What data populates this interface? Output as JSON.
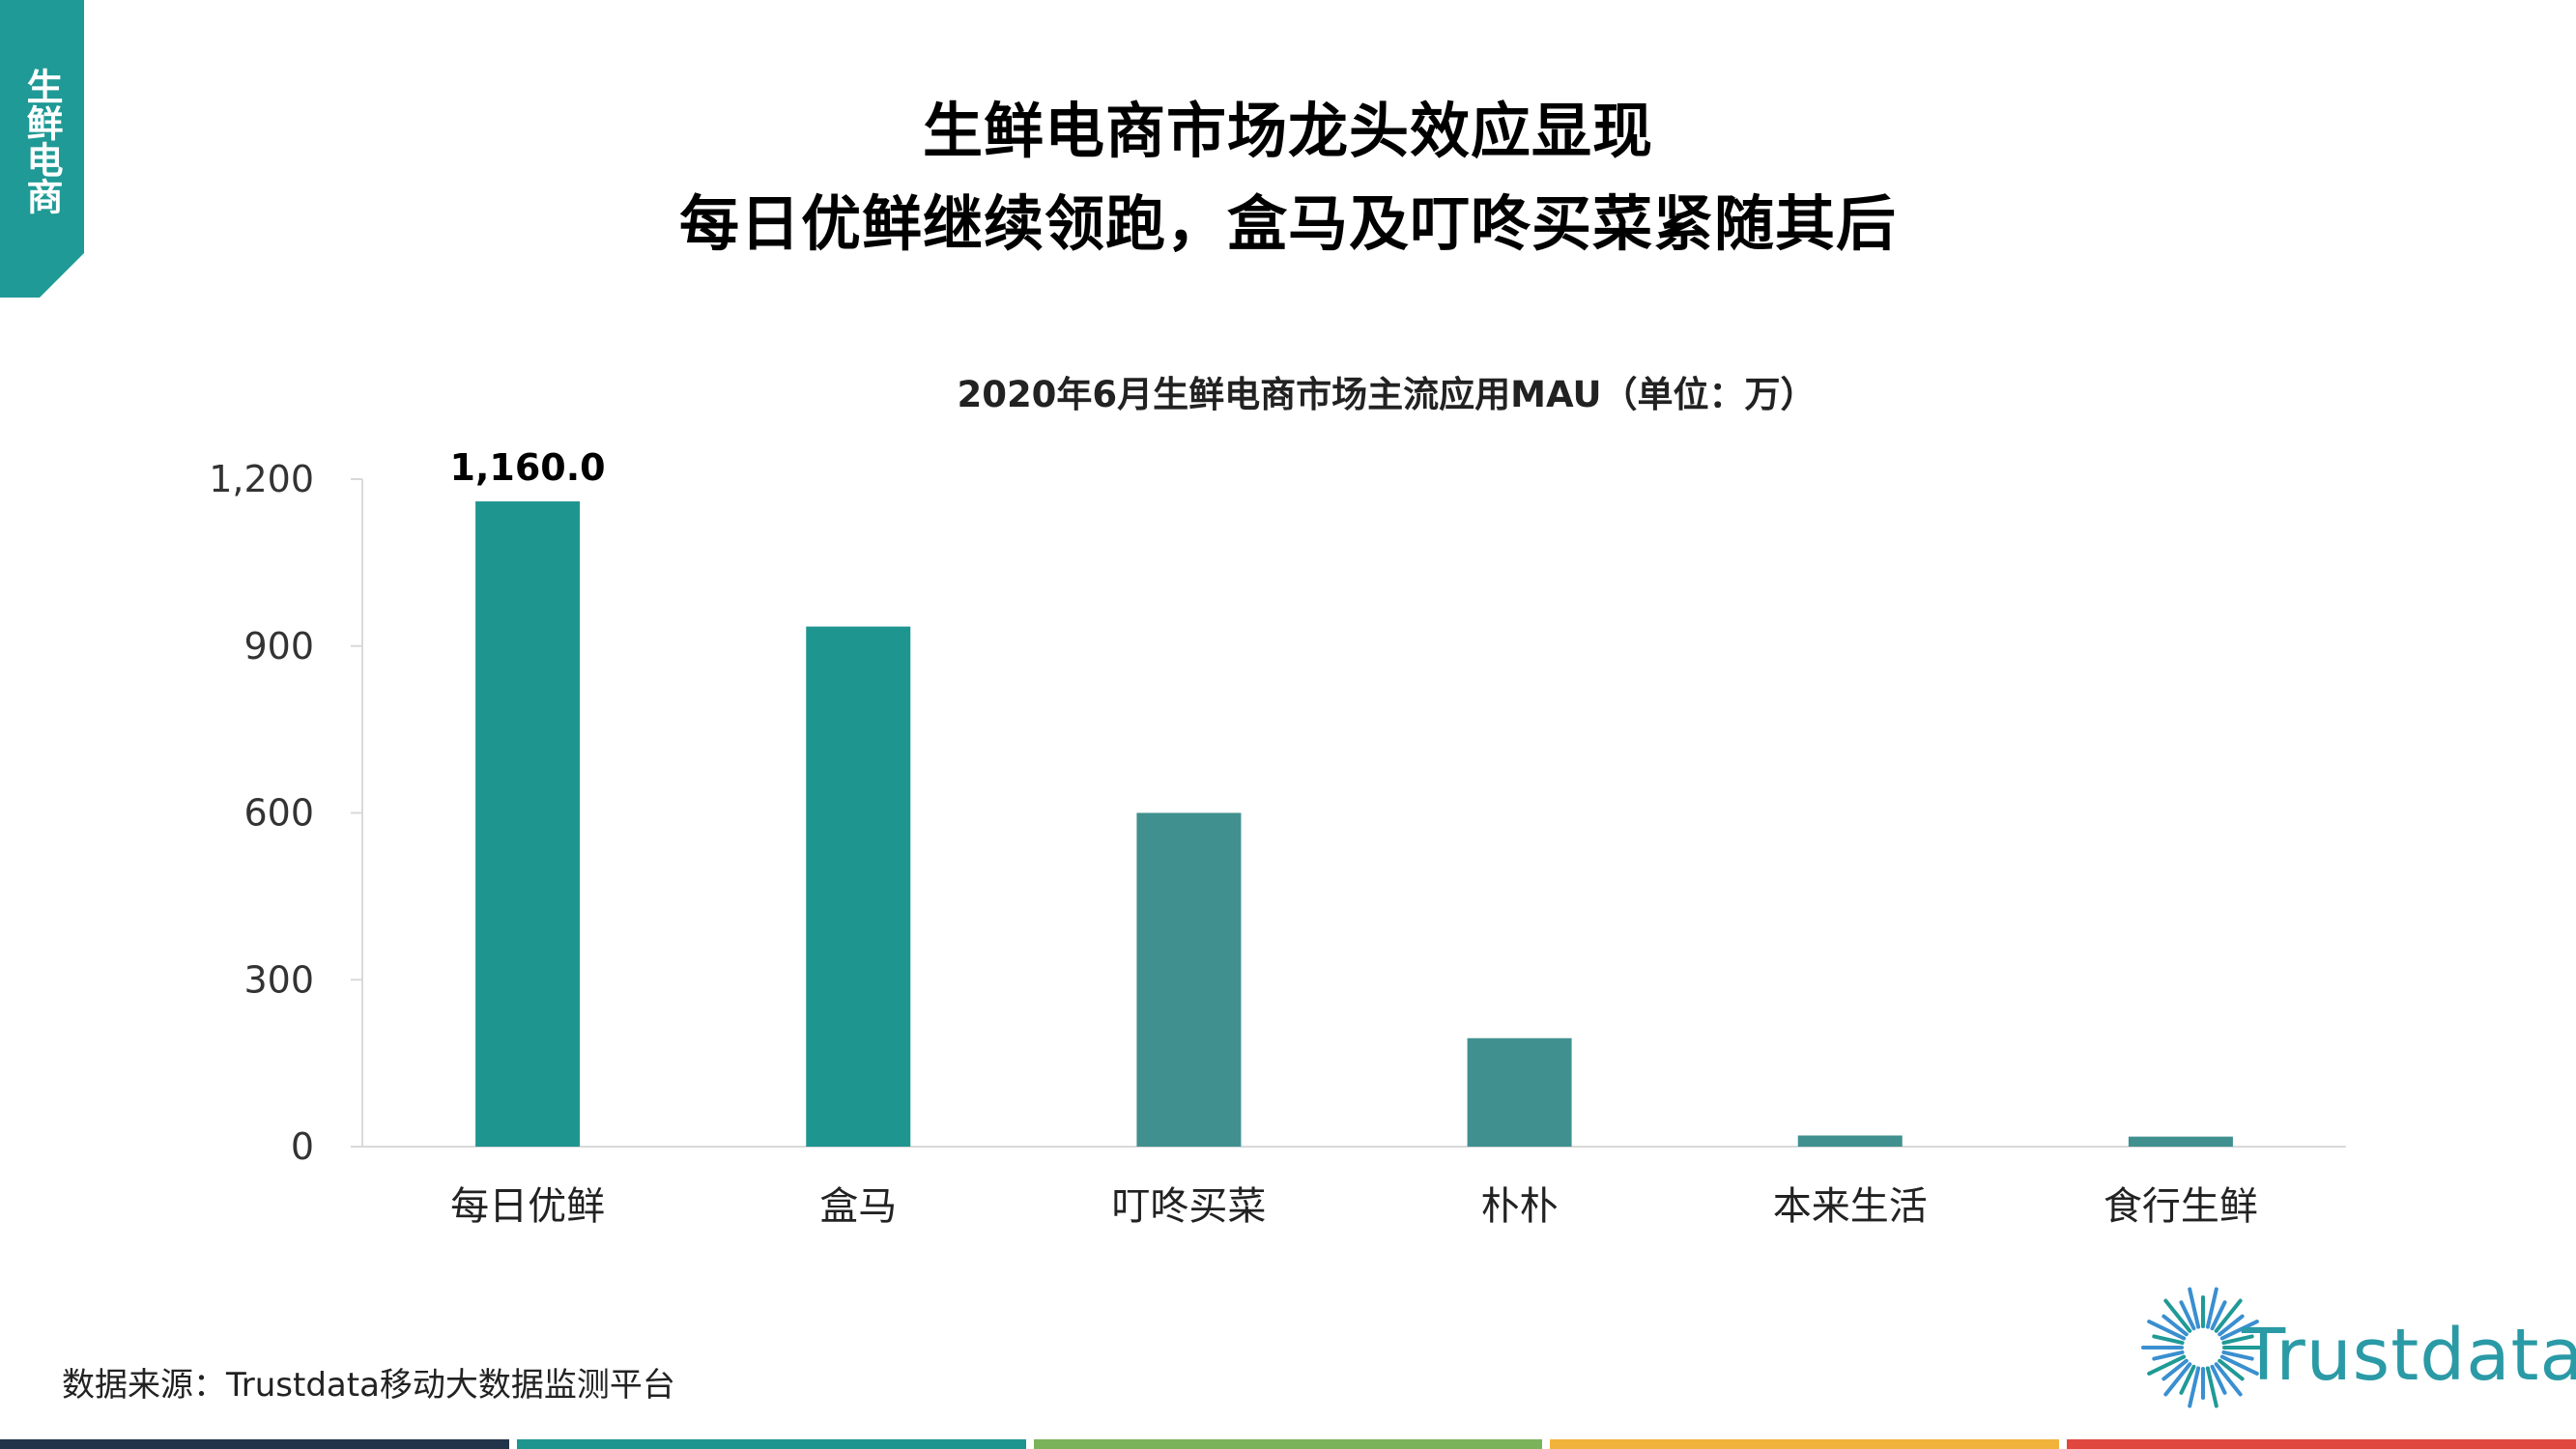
{
  "side_tag": {
    "text": "生鲜电商"
  },
  "title": {
    "line1": "生鲜电商市场龙头效应显现",
    "line2": "每日优鲜继续领跑，盒马及叮咚买菜紧随其后"
  },
  "source": "数据来源：Trustdata移动大数据监测平台",
  "logo": {
    "text": "Trustdata"
  },
  "colors": {
    "teal": "#1f9590",
    "teal_muted": "#40908f",
    "tag": "#1f9a96",
    "bottom_bar": [
      "#21344a",
      "#1f9590",
      "#7ab35a",
      "#f2b33c",
      "#e0473f"
    ]
  },
  "chart_data": {
    "type": "bar",
    "title": "2020年6月生鲜电商市场主流应用MAU（单位：万）",
    "categories": [
      "每日优鲜",
      "盒马",
      "叮咚买菜",
      "朴朴",
      "本来生活",
      "食行生鲜"
    ],
    "values": [
      1160.0,
      935,
      600,
      195,
      20,
      18
    ],
    "bar_colors": [
      "#1f9590",
      "#1f9590",
      "#40908f",
      "#40908f",
      "#40908f",
      "#40908f"
    ],
    "data_labels": [
      "1,160.0",
      "",
      "",
      "",
      "",
      ""
    ],
    "ylim": [
      0,
      1200
    ],
    "yticks": [
      0,
      300,
      600,
      900,
      1200
    ],
    "ytick_labels": [
      "0",
      "300",
      "600",
      "900",
      "1,200"
    ],
    "xlabel": "",
    "ylabel": "",
    "grid": false,
    "legend": false
  }
}
